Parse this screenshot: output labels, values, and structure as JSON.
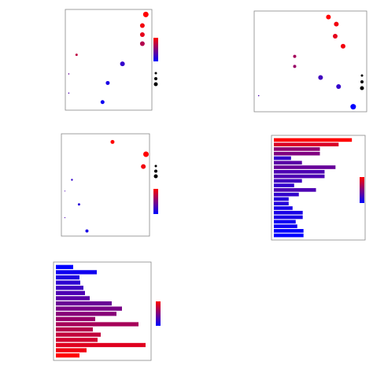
{
  "chart_data": [
    {
      "type": "scatter",
      "cmap": [
        "#0000ff",
        "#ff0000"
      ],
      "colorbar": true,
      "xlim": [
        0,
        10
      ],
      "ylim": [
        0,
        10
      ],
      "x": [
        9.3,
        8.9,
        8.9,
        8.9,
        6.6,
        1.3,
        0.4,
        4.9,
        0.4,
        4.3
      ],
      "y": [
        9.5,
        8.4,
        7.5,
        6.6,
        4.6,
        5.5,
        3.6,
        2.7,
        1.7,
        0.8
      ],
      "sizes": [
        3.5,
        3,
        3,
        3,
        3,
        1.5,
        0.8,
        2.5,
        0.8,
        2.5
      ],
      "c": [
        1,
        0.95,
        0.9,
        0.7,
        0.2,
        0.75,
        0.4,
        0.1,
        0.3,
        0.05
      ],
      "size_legend": [
        1.5,
        2,
        2.5
      ]
    },
    {
      "type": "scatter",
      "cmap": [
        "#0000ff",
        "#ff0000"
      ],
      "colorbar": false,
      "xlim": [
        0,
        10
      ],
      "ylim": [
        0,
        10
      ],
      "x": [
        6.6,
        7.3,
        7.2,
        7.9,
        3.6,
        3.6,
        5.9,
        7.5,
        8.8,
        0.4
      ],
      "y": [
        9.4,
        8.7,
        7.5,
        6.5,
        5.5,
        4.5,
        3.4,
        2.5,
        0.5,
        1.6
      ],
      "sizes": [
        3,
        3,
        3,
        3,
        2,
        2,
        3,
        3,
        3.5,
        0.8
      ],
      "c": [
        1,
        0.95,
        0.9,
        0.95,
        0.65,
        0.6,
        0.25,
        0.2,
        0,
        0.3
      ],
      "size_legend": [
        1.5,
        2,
        2.5
      ]
    },
    {
      "type": "scatter",
      "cmap": [
        "#0000ff",
        "#ff0000"
      ],
      "colorbar": true,
      "xlim": [
        0,
        10
      ],
      "ylim": [
        0,
        10
      ],
      "x": [
        5.8,
        9.6,
        9.3,
        1.2,
        0.4,
        2.0,
        0.4,
        2.9
      ],
      "y": [
        9.2,
        8.0,
        6.8,
        5.5,
        4.4,
        3.1,
        1.8,
        0.5
      ],
      "sizes": [
        2.5,
        3.5,
        3,
        1.2,
        0.6,
        1.5,
        0.6,
        2
      ],
      "c": [
        1,
        1,
        0.95,
        0.2,
        0.3,
        0.15,
        0.3,
        0.1
      ],
      "size_legend": [
        1.5,
        2,
        2.5
      ]
    },
    {
      "type": "barh",
      "cmap": [
        "#0000ff",
        "#ff0000"
      ],
      "colorbar": true,
      "xlim": [
        0,
        120
      ],
      "values": [
        100,
        83,
        59,
        59,
        22,
        36,
        79,
        65,
        65,
        36,
        26,
        54,
        32,
        19,
        19,
        24,
        37,
        37,
        28,
        30,
        38,
        38
      ],
      "c": [
        1,
        0.85,
        0.55,
        0.5,
        0.2,
        0.35,
        0.4,
        0.3,
        0.3,
        0.25,
        0.2,
        0.3,
        0.2,
        0.15,
        0.15,
        0.1,
        0.1,
        0.1,
        0.05,
        0.05,
        0.02,
        0
      ]
    },
    {
      "type": "barh",
      "cmap": [
        "#0000ff",
        "#ff0000"
      ],
      "colorbar": true,
      "xlim": [
        0,
        124
      ],
      "values": [
        22,
        52,
        30,
        31,
        35,
        37,
        43,
        71,
        84,
        77,
        50,
        105,
        47,
        57,
        53,
        114,
        39,
        30
      ],
      "c": [
        0,
        0.06,
        0.12,
        0.18,
        0.24,
        0.3,
        0.35,
        0.41,
        0.47,
        0.53,
        0.59,
        0.65,
        0.71,
        0.76,
        0.82,
        0.88,
        0.94,
        1
      ]
    }
  ]
}
